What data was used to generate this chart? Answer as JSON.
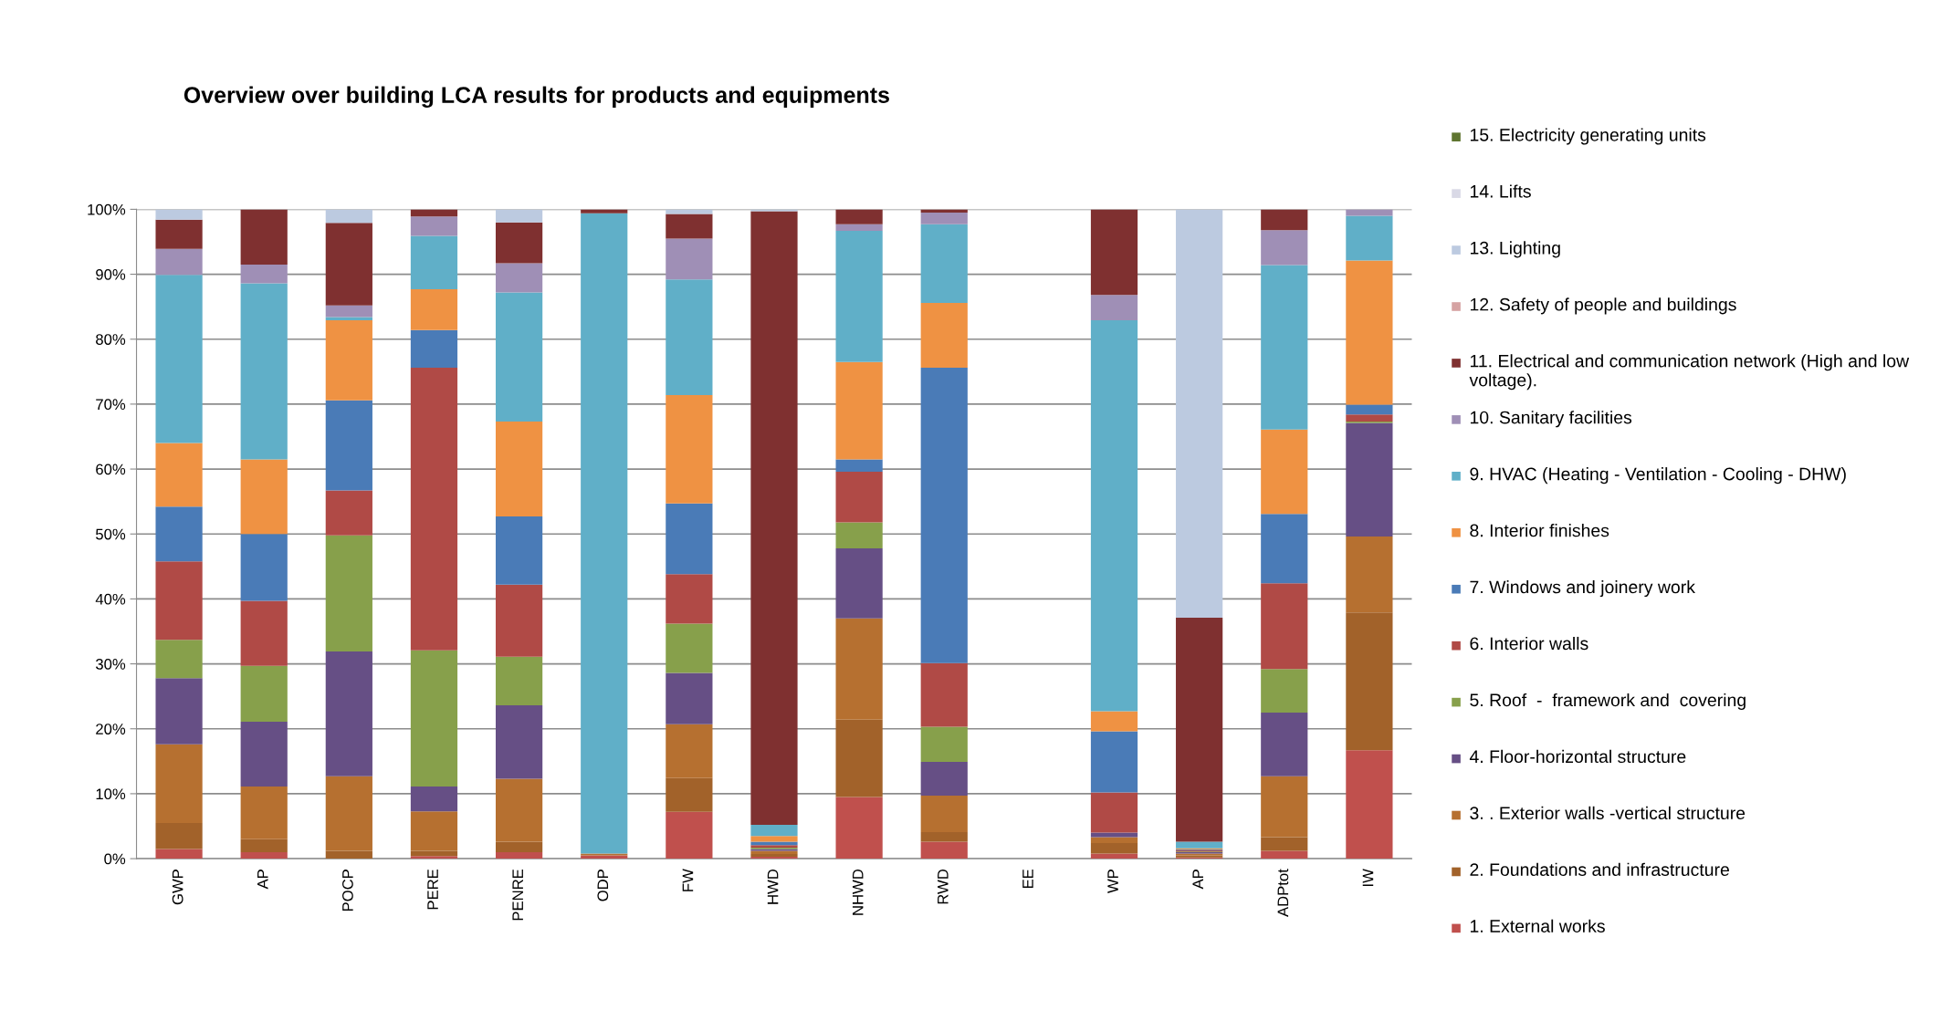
{
  "chart_data": {
    "type": "bar",
    "stacked": true,
    "title": "Overview over building LCA results for products and equipments",
    "categories": [
      "GWP",
      "AP",
      "POCP",
      "PERE",
      "PENRE",
      "ODP",
      "FW",
      "HWD",
      "NHWD",
      "RWD",
      "EE",
      "WP",
      "AP",
      "ADPtot",
      "IW"
    ],
    "ylim": [
      0,
      100
    ],
    "yticks": [
      {
        "value": 0,
        "label": "0%"
      },
      {
        "value": 10,
        "label": "10%"
      },
      {
        "value": 20,
        "label": "20%"
      },
      {
        "value": 30,
        "label": "30%"
      },
      {
        "value": 40,
        "label": "40%"
      },
      {
        "value": 50,
        "label": "50%"
      },
      {
        "value": 60,
        "label": "60%"
      },
      {
        "value": 70,
        "label": "70%"
      },
      {
        "value": 80,
        "label": "80%"
      },
      {
        "value": 90,
        "label": "90%"
      },
      {
        "value": 100,
        "label": "100%"
      }
    ],
    "grid": "y",
    "legend": "right",
    "series": [
      {
        "name": "1. External works",
        "color": "#c0504d",
        "values": [
          1.5,
          1.0,
          0,
          0.4,
          1.0,
          0.5,
          7.2,
          0.3,
          9.5,
          2.6,
          null,
          0.8,
          0.2,
          1.2,
          16.7
        ]
      },
      {
        "name": "2. Foundations and infrastructure",
        "color": "#a2622a",
        "values": [
          4.0,
          2.0,
          1.2,
          0.8,
          1.6,
          0,
          5.2,
          0.4,
          11.9,
          1.5,
          null,
          1.6,
          0.3,
          2.1,
          21.2
        ]
      },
      {
        "name": "3. . Exterior walls -vertical structure",
        "color": "#b67030",
        "values": [
          12.1,
          8.1,
          11.5,
          6.1,
          9.7,
          0.3,
          8.3,
          0.5,
          15.6,
          5.6,
          null,
          0.9,
          0.3,
          9.4,
          11.7
        ]
      },
      {
        "name": "4. Floor-horizontal structure",
        "color": "#664f85",
        "values": [
          10.2,
          10.0,
          19.2,
          3.8,
          11.3,
          0,
          7.9,
          0.3,
          10.8,
          5.2,
          null,
          0.7,
          0.2,
          9.8,
          17.5
        ]
      },
      {
        "name": "5. Roof  -  framework and  covering",
        "color": "#87a04b",
        "values": [
          5.9,
          8.6,
          17.9,
          21.0,
          7.5,
          0,
          7.6,
          0.2,
          4.0,
          5.4,
          null,
          0,
          0.1,
          6.7,
          0.2
        ]
      },
      {
        "name": "6. Interior walls",
        "color": "#b04a46",
        "values": [
          12.1,
          10.0,
          6.9,
          43.5,
          11.1,
          0,
          7.6,
          0.4,
          7.8,
          9.8,
          null,
          6.2,
          0.2,
          13.2,
          1.1
        ]
      },
      {
        "name": "7. Windows and joinery work",
        "color": "#4a7bb7",
        "values": [
          8.4,
          10.3,
          13.9,
          5.8,
          10.5,
          0,
          10.9,
          0.5,
          1.9,
          45.5,
          null,
          9.4,
          0.1,
          10.7,
          1.5
        ]
      },
      {
        "name": "8. Interior finishes",
        "color": "#ef9243",
        "values": [
          9.8,
          11.5,
          12.3,
          6.3,
          14.6,
          0,
          16.7,
          0.9,
          15.0,
          10.0,
          null,
          3.1,
          0.2,
          13.0,
          22.2
        ]
      },
      {
        "name": "9. HVAC (Heating - Ventilation - Cooling - DHW)",
        "color": "#60afc8",
        "values": [
          25.9,
          27.1,
          0.5,
          8.2,
          19.9,
          98.6,
          17.8,
          1.7,
          20.2,
          12.1,
          null,
          60.2,
          1.0,
          25.3,
          6.9
        ]
      },
      {
        "name": "10. Sanitary facilities",
        "color": "#9f8fb6",
        "values": [
          4.0,
          2.9,
          1.8,
          3.0,
          4.5,
          0,
          6.3,
          0,
          1.0,
          1.8,
          null,
          3.9,
          0,
          5.4,
          1.0
        ]
      },
      {
        "name": "11. Electrical and communication network (High and low voltage).",
        "color": "#7f3030",
        "values": [
          4.5,
          8.5,
          12.7,
          1.1,
          6.3,
          0.6,
          3.8,
          94.5,
          2.3,
          0.5,
          null,
          13.2,
          34.5,
          3.2,
          0
        ]
      },
      {
        "name": "12. Safety of people and buildings",
        "color": "#d6a3a3",
        "values": [
          0,
          0,
          0,
          0,
          0,
          0,
          0,
          0,
          0,
          0,
          null,
          0,
          0,
          0,
          0
        ]
      },
      {
        "name": "13. Lighting",
        "color": "#bccae0",
        "values": [
          1.6,
          0,
          2.1,
          0,
          2.0,
          0,
          0.7,
          0.3,
          0,
          0,
          null,
          0,
          62.9,
          0,
          0
        ]
      },
      {
        "name": "14. Lifts",
        "color": "#d9d9e6",
        "values": [
          0,
          0,
          0,
          0,
          0,
          0,
          0,
          0,
          0,
          0,
          null,
          0,
          0,
          0,
          0
        ]
      },
      {
        "name": "15. Electricity generating units",
        "color": "#5f7530",
        "values": [
          0,
          0,
          0,
          0,
          0,
          0,
          0,
          0,
          0,
          0,
          null,
          0,
          0,
          0,
          0
        ]
      }
    ]
  }
}
